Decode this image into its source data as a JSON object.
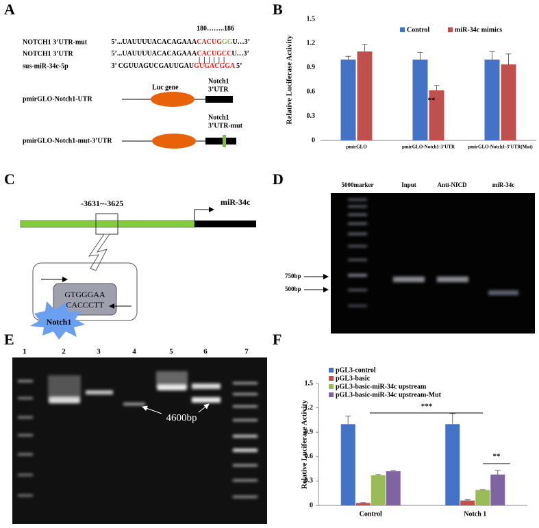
{
  "panel_labels": [
    "A",
    "B",
    "C",
    "D",
    "E",
    "F"
  ],
  "panel_a": {
    "position_range": "180……..186",
    "rows": [
      {
        "name": "NOTCH1 3’UTR-mut",
        "parts": [
          "5’...UAUUUUACACAGAAA",
          "CACUG",
          "GG",
          "U…3’"
        ]
      },
      {
        "name": "NOTCH1 3’UTR",
        "parts": [
          "5’...UAUUUUACACAGAAA",
          "CACUGCC",
          "U…3’"
        ]
      },
      {
        "name": "sus-miR-34c-5p",
        "parts": [
          "3’ CGUUAGUCGAUUGAU",
          "GUGACGGA",
          " 5’"
        ]
      }
    ],
    "pairing": "||||||",
    "constructs": [
      {
        "name": "pmirGLO-Notch1-UTR",
        "gene": "Luc gene",
        "utr": [
          "Notch1",
          "3’UTR"
        ]
      },
      {
        "name": "pmirGLO-Notch1-mut-3’UTR",
        "utr": [
          "Notch1",
          "3’UTR-mut"
        ]
      }
    ]
  },
  "panel_c": {
    "site": "-3631~-3625",
    "gene": "miR-34c",
    "motif": [
      "GTGGGAA",
      "CACCCTT"
    ],
    "factor": "Notch1"
  },
  "panel_d": {
    "lanes": [
      "5000marker",
      "Input",
      "Anti-NICD",
      "miR-34c"
    ],
    "markers": [
      "750bp",
      "500bp"
    ]
  },
  "panel_e": {
    "lanes": [
      "1",
      "2",
      "3",
      "4",
      "5",
      "6",
      "7"
    ],
    "annotation": "4600bp"
  },
  "chart_data": [
    {
      "type": "bar",
      "y_label": "Relative Luciferase Activity",
      "categories": [
        "pmirGLO",
        "pmirGLO-Notch1-3’UTR",
        "pmirGLO-Notch1-3’UTR(Mut)"
      ],
      "series": [
        {
          "name": "Control",
          "color": "#4472c4",
          "values": [
            1,
            1,
            1
          ],
          "errors": [
            0.04,
            0.09,
            0.1
          ]
        },
        {
          "name": "miR-34c mimics",
          "color": "#c0504d",
          "values": [
            1.1,
            0.62,
            0.94
          ],
          "errors": [
            0.09,
            0.06,
            0.13
          ]
        }
      ],
      "ylim": [
        0,
        1.5
      ],
      "yticks": [
        0,
        0.3,
        0.6,
        0.9,
        1.2,
        1.5
      ],
      "legend": "top-right",
      "annotations": [
        "**"
      ]
    },
    {
      "type": "bar",
      "y_label": "Relative Luciferase Activity",
      "categories": [
        "Control",
        "Notch 1"
      ],
      "series": [
        {
          "name": "pGL3-control",
          "color": "#4472c4",
          "values": [
            1,
            1
          ],
          "errors": [
            0.1,
            0.13
          ]
        },
        {
          "name": "pGL3-basic",
          "color": "#c0504d",
          "values": [
            0.03,
            0.06
          ],
          "errors": [
            0.005,
            0.01
          ]
        },
        {
          "name": "pGL3-basic-miR-34c upstream",
          "color": "#9bbb59",
          "values": [
            0.37,
            0.19
          ],
          "errors": [
            0.01,
            0.005
          ]
        },
        {
          "name": "pGL3-basic-miR-34c upstream-Mut",
          "color": "#8064a2",
          "values": [
            0.42,
            0.38
          ],
          "errors": [
            0.01,
            0.05
          ]
        }
      ],
      "ylim": [
        0,
        1.5
      ],
      "yticks": [
        0,
        0.3,
        0.6,
        0.9,
        1.2,
        1.5
      ],
      "legend": "top-left",
      "annotations": [
        "***",
        "**"
      ]
    }
  ]
}
